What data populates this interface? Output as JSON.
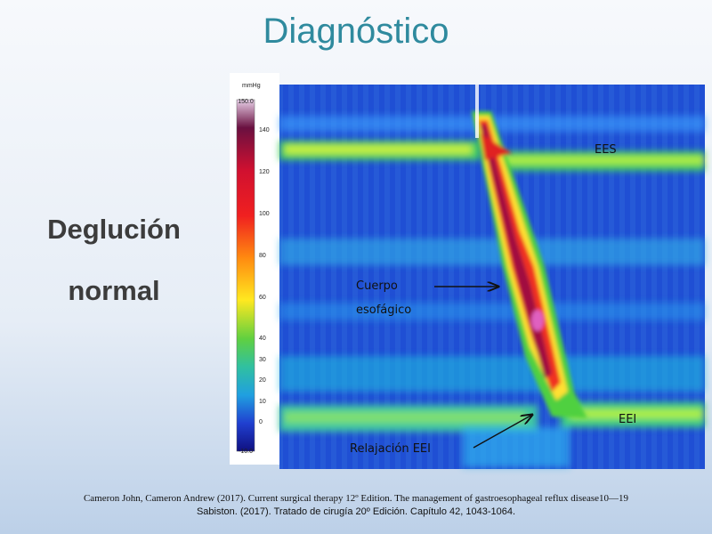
{
  "title": "Diagnóstico",
  "side_text": [
    "Deglución",
    "normal"
  ],
  "figure": {
    "colorbar": {
      "unit": "mmHg",
      "ticks": [
        "150.0",
        140,
        120,
        100,
        80,
        60,
        40,
        30,
        20,
        10,
        0,
        "-10.0"
      ]
    },
    "labels": {
      "ees": "EES",
      "body": [
        "Cuerpo",
        "esofágico"
      ],
      "eei": "EEI",
      "relaxation": "Relajación EEI"
    }
  },
  "references": [
    "Cameron John, Cameron Andrew (2017). Current surgical therapy 12º Edition.  The management of gastroesophageal reflux disease10—19",
    "Sabiston. (2017). Tratado de cirugía 20º Edición. Capítulo 42, 1043-1064."
  ]
}
